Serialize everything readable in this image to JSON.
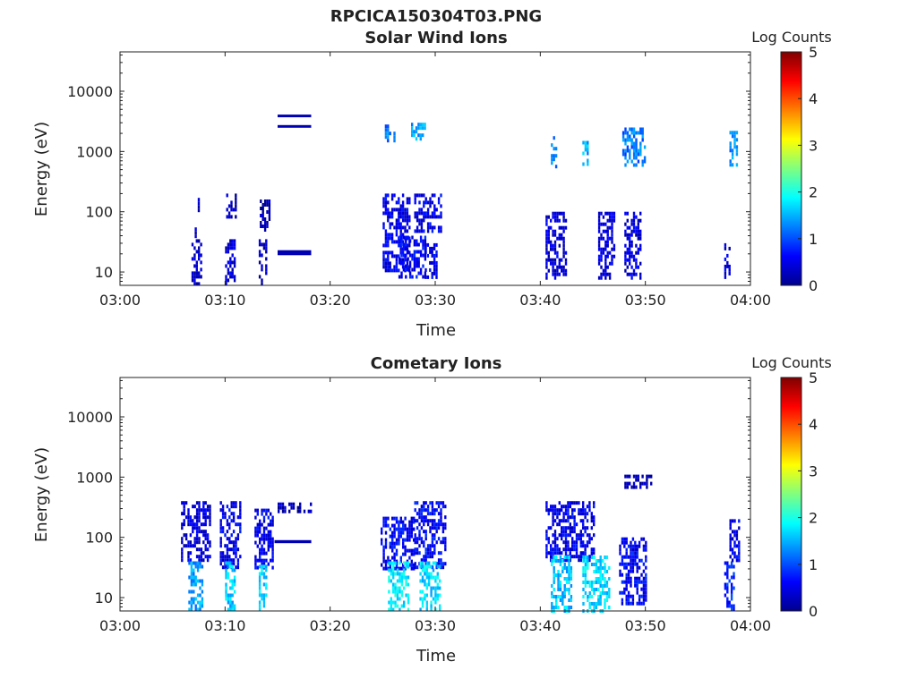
{
  "figure_title": "RPCICA150304T03.PNG",
  "panels": [
    {
      "title": "Solar Wind Ions",
      "xlabel": "Time",
      "ylabel": "Energy (eV)",
      "colorbar_label": "Log Counts"
    },
    {
      "title": "Cometary Ions",
      "xlabel": "Time",
      "ylabel": "Energy (eV)",
      "colorbar_label": "Log Counts"
    }
  ],
  "x_ticks": [
    "03:00",
    "03:10",
    "03:20",
    "03:30",
    "03:40",
    "03:50",
    "04:00"
  ],
  "y_ticks": [
    "10",
    "100",
    "1000",
    "10000"
  ],
  "colorbar_ticks": [
    "0",
    "1",
    "2",
    "3",
    "4",
    "5"
  ],
  "chart_data": [
    {
      "type": "heatmap",
      "title": "Solar Wind Ions",
      "xlabel": "Time",
      "ylabel": "Energy (eV)",
      "x_unit": "minutes after 03:00",
      "xlim": [
        0,
        60
      ],
      "ylim": [
        6,
        45000
      ],
      "y_scale": "log",
      "color_scale": "Log Counts",
      "clim": [
        0,
        5
      ],
      "colormap": "jet",
      "x_ticks": [
        "03:00",
        "03:10",
        "03:20",
        "03:30",
        "03:40",
        "03:50",
        "04:00"
      ],
      "y_ticks": [
        10,
        100,
        1000,
        10000
      ],
      "blocks": [
        {
          "t": [
            6.8,
            7.8
          ],
          "e": [
            6,
            35
          ],
          "v": 0.3
        },
        {
          "t": [
            6.9,
            7.2
          ],
          "e": [
            40,
            55
          ],
          "v": 0.2
        },
        {
          "t": [
            7.4,
            7.7
          ],
          "e": [
            100,
            170
          ],
          "v": 0.2
        },
        {
          "t": [
            10.0,
            11.0
          ],
          "e": [
            6,
            35
          ],
          "v": 0.4
        },
        {
          "t": [
            10.1,
            11.0
          ],
          "e": [
            80,
            200
          ],
          "v": 0.2
        },
        {
          "t": [
            13.2,
            13.9
          ],
          "e": [
            6,
            35
          ],
          "v": 0.3
        },
        {
          "t": [
            13.3,
            14.3
          ],
          "e": [
            50,
            160
          ],
          "v": 0.2
        },
        {
          "t": [
            15.0,
            18.2
          ],
          "e": [
            19,
            23
          ],
          "v": 0.2
        },
        {
          "t": [
            15.0,
            18.2
          ],
          "e": [
            2550,
            2750
          ],
          "v": 0.2
        },
        {
          "t": [
            15.0,
            18.2
          ],
          "e": [
            3800,
            4100
          ],
          "v": 0.2
        },
        {
          "t": [
            25.0,
            27.5
          ],
          "e": [
            10,
            200
          ],
          "v": 0.5
        },
        {
          "t": [
            25.2,
            26.2
          ],
          "e": [
            1500,
            2800
          ],
          "v": 1.2
        },
        {
          "t": [
            26.5,
            29.0
          ],
          "e": [
            8,
            40
          ],
          "v": 0.6
        },
        {
          "t": [
            27.7,
            29.0
          ],
          "e": [
            1600,
            3000
          ],
          "v": 1.4
        },
        {
          "t": [
            28.0,
            30.5
          ],
          "e": [
            50,
            200
          ],
          "v": 0.5
        },
        {
          "t": [
            29.0,
            30.2
          ],
          "e": [
            8,
            30
          ],
          "v": 0.5
        },
        {
          "t": [
            40.5,
            42.5
          ],
          "e": [
            8,
            100
          ],
          "v": 0.4
        },
        {
          "t": [
            41.0,
            41.5
          ],
          "e": [
            600,
            1800
          ],
          "v": 1.3
        },
        {
          "t": [
            44.0,
            44.5
          ],
          "e": [
            600,
            1500
          ],
          "v": 1.5
        },
        {
          "t": [
            45.5,
            47.0
          ],
          "e": [
            8,
            100
          ],
          "v": 0.4
        },
        {
          "t": [
            47.8,
            50.0
          ],
          "e": [
            600,
            2500
          ],
          "v": 1.2
        },
        {
          "t": [
            48.0,
            49.5
          ],
          "e": [
            8,
            100
          ],
          "v": 0.4
        },
        {
          "t": [
            57.5,
            58.0
          ],
          "e": [
            8,
            30
          ],
          "v": 0.4
        },
        {
          "t": [
            58.0,
            58.7
          ],
          "e": [
            600,
            2200
          ],
          "v": 1.3
        }
      ]
    },
    {
      "type": "heatmap",
      "title": "Cometary Ions",
      "xlabel": "Time",
      "ylabel": "Energy (eV)",
      "x_unit": "minutes after 03:00",
      "xlim": [
        0,
        60
      ],
      "ylim": [
        6,
        45000
      ],
      "y_scale": "log",
      "color_scale": "Log Counts",
      "clim": [
        0,
        5
      ],
      "colormap": "jet",
      "x_ticks": [
        "03:00",
        "03:10",
        "03:20",
        "03:30",
        "03:40",
        "03:50",
        "04:00"
      ],
      "y_ticks": [
        10,
        100,
        1000,
        10000
      ],
      "blocks": [
        {
          "t": [
            5.8,
            8.5
          ],
          "e": [
            40,
            400
          ],
          "v": 0.4
        },
        {
          "t": [
            6.5,
            7.8
          ],
          "e": [
            6,
            40
          ],
          "v": 1.4
        },
        {
          "t": [
            9.5,
            11.5
          ],
          "e": [
            30,
            400
          ],
          "v": 0.5
        },
        {
          "t": [
            10.0,
            11.0
          ],
          "e": [
            6,
            40
          ],
          "v": 1.6
        },
        {
          "t": [
            12.8,
            14.5
          ],
          "e": [
            30,
            300
          ],
          "v": 0.5
        },
        {
          "t": [
            13.2,
            14.0
          ],
          "e": [
            6,
            35
          ],
          "v": 1.7
        },
        {
          "t": [
            14.7,
            18.2
          ],
          "e": [
            80,
            90
          ],
          "v": 0.2
        },
        {
          "t": [
            15.0,
            18.2
          ],
          "e": [
            270,
            380
          ],
          "v": 0.2
        },
        {
          "t": [
            24.8,
            28.0
          ],
          "e": [
            30,
            220
          ],
          "v": 0.6
        },
        {
          "t": [
            25.5,
            27.5
          ],
          "e": [
            6,
            40
          ],
          "v": 1.8
        },
        {
          "t": [
            28.0,
            31.0
          ],
          "e": [
            30,
            400
          ],
          "v": 0.6
        },
        {
          "t": [
            28.5,
            30.5
          ],
          "e": [
            6,
            40
          ],
          "v": 1.7
        },
        {
          "t": [
            40.5,
            45.0
          ],
          "e": [
            40,
            400
          ],
          "v": 0.5
        },
        {
          "t": [
            41.0,
            43.0
          ],
          "e": [
            6,
            50
          ],
          "v": 1.6
        },
        {
          "t": [
            44.0,
            46.5
          ],
          "e": [
            6,
            50
          ],
          "v": 1.7
        },
        {
          "t": [
            47.5,
            50.0
          ],
          "e": [
            8,
            100
          ],
          "v": 0.6
        },
        {
          "t": [
            48.0,
            50.5
          ],
          "e": [
            700,
            1100
          ],
          "v": 0.3
        },
        {
          "t": [
            57.5,
            58.5
          ],
          "e": [
            6,
            40
          ],
          "v": 0.8
        },
        {
          "t": [
            58.0,
            59.0
          ],
          "e": [
            40,
            200
          ],
          "v": 0.5
        }
      ]
    }
  ]
}
